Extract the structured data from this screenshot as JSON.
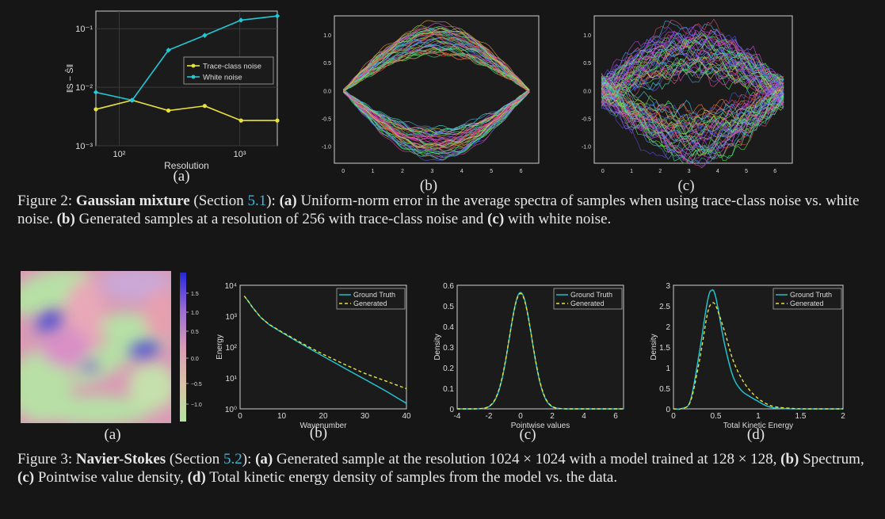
{
  "figure2": {
    "panel_labels": [
      "(a)",
      "(b)",
      "(c)"
    ],
    "caption": {
      "prefix": "Figure 2: ",
      "title": "Gaussian mixture",
      "section_open": " (Section ",
      "section_ref": "5.1",
      "section_close": "): ",
      "a_label": "(a)",
      "a_text": " Uniform-norm error in the average spectra of samples when using trace-class noise vs. white noise. ",
      "b_label": "(b)",
      "b_text": " Generated samples at a resolution of 256 with trace-class noise and ",
      "c_label": "(c)",
      "c_text": " with white noise."
    }
  },
  "figure3": {
    "panel_labels": [
      "(a)",
      "(b)",
      "(c)",
      "(d)"
    ],
    "caption": {
      "prefix": "Figure 3: ",
      "title": "Navier-Stokes",
      "section_open": " (Section ",
      "section_ref": "5.2",
      "section_close": "): ",
      "a_label": "(a)",
      "a_text": " Generated sample at the resolution 1024 × 1024 with a model trained at 128 × 128, ",
      "b_label": "(b)",
      "b_text": " Spectrum, ",
      "c_label": "(c)",
      "c_text": " Pointwise value density, ",
      "d_label": "(d)",
      "d_text": " Total kinetic energy density of samples from the model vs. the data."
    }
  },
  "colors": {
    "cyan": "#22c8d6",
    "yellow": "#e8e23a",
    "link": "#3fb6d8"
  },
  "chart_data": [
    {
      "id": "fig2a",
      "type": "line",
      "xlabel": "Resolution",
      "ylabel": "‖S − Ŝ‖",
      "xscale": "log",
      "yscale": "log",
      "xlim": [
        64,
        2048
      ],
      "ylim": [
        0.001,
        0.2
      ],
      "xticks": [
        "10²",
        "10³"
      ],
      "yticks": [
        "10⁻³",
        "10⁻²",
        "10⁻¹"
      ],
      "x": [
        64,
        128,
        256,
        512,
        1024,
        2048
      ],
      "series": [
        {
          "name": "Trace-class noise",
          "values": [
            0.0042,
            0.006,
            0.004,
            0.0048,
            0.0027,
            0.0027
          ]
        },
        {
          "name": "White noise",
          "values": [
            0.0082,
            0.006,
            0.043,
            0.077,
            0.14,
            0.165
          ]
        }
      ],
      "legend": "center-right"
    },
    {
      "id": "fig2b",
      "type": "line",
      "xlim": [
        -0.3,
        6.6
      ],
      "ylim": [
        -1.3,
        1.35
      ],
      "xticks": [
        "0",
        "1",
        "2",
        "3",
        "4",
        "5",
        "6"
      ],
      "yticks": [
        "-1.0",
        "-0.5",
        "0.0",
        "0.5",
        "1.0"
      ],
      "description_points": "many overlapping sample curves forming an eye shape between 0 and 2π"
    },
    {
      "id": "fig2c",
      "type": "line",
      "xlim": [
        -0.3,
        6.6
      ],
      "ylim": [
        -1.3,
        1.35
      ],
      "xticks": [
        "0",
        "1",
        "2",
        "3",
        "4",
        "5",
        "6"
      ],
      "yticks": [
        "-1.0",
        "-0.5",
        "0.0",
        "0.5",
        "1.0"
      ]
    },
    {
      "id": "fig3a",
      "type": "heatmap",
      "colorbar_ticks": [
        "1.5",
        "1.0",
        "0.5",
        "0.0",
        "−0.5",
        "−1.0"
      ]
    },
    {
      "id": "fig3b",
      "type": "line",
      "xlabel": "Wavenumber",
      "ylabel": "Energy",
      "yscale": "log",
      "xlim": [
        0,
        40
      ],
      "ylim": [
        1,
        10000
      ],
      "xticks": [
        "0",
        "10",
        "20",
        "30",
        "40"
      ],
      "yticks": [
        "10⁰",
        "10¹",
        "10²",
        "10³",
        "10⁴"
      ],
      "x": [
        1,
        2,
        3,
        5,
        7,
        10,
        15,
        20,
        25,
        30,
        35,
        40
      ],
      "series": [
        {
          "name": "Ground Truth",
          "values": [
            4500,
            3000,
            1900,
            900,
            530,
            300,
            120,
            50,
            21,
            9,
            3.8,
            1.5
          ]
        },
        {
          "name": "Generated",
          "values": [
            4500,
            3000,
            1900,
            900,
            540,
            310,
            130,
            58,
            28,
            14,
            8,
            4.5
          ]
        }
      ],
      "legend": "top-right"
    },
    {
      "id": "fig3c",
      "type": "line",
      "xlabel": "Pointwise values",
      "ylabel": "Density",
      "xlim": [
        -4,
        6.5
      ],
      "ylim": [
        0,
        0.6
      ],
      "xticks": [
        "-4",
        "-2",
        "0",
        "2",
        "4",
        "6"
      ],
      "yticks": [
        "0",
        "0.1",
        "0.2",
        "0.3",
        "0.4",
        "0.5",
        "0.6"
      ],
      "series": [
        {
          "name": "Ground Truth",
          "mean": 0,
          "sd": 0.71,
          "peak": 0.565
        },
        {
          "name": "Generated",
          "mean": 0,
          "sd": 0.72,
          "peak": 0.56
        }
      ],
      "legend": "top-right"
    },
    {
      "id": "fig3d",
      "type": "line",
      "xlabel": "Total Kinetic Energy",
      "ylabel": "Density",
      "xlim": [
        0,
        2
      ],
      "ylim": [
        0,
        3
      ],
      "xticks": [
        "0",
        "0.5",
        "1",
        "1.5",
        "2"
      ],
      "yticks": [
        "0",
        "0.5",
        "1",
        "1.5",
        "2",
        "2.5",
        "3"
      ],
      "x": [
        0,
        0.1,
        0.2,
        0.3,
        0.4,
        0.45,
        0.5,
        0.6,
        0.7,
        0.8,
        0.9,
        1.0,
        1.1,
        1.2,
        1.4,
        1.6,
        2.0
      ],
      "series": [
        {
          "name": "Ground Truth",
          "values": [
            0,
            0.01,
            0.2,
            1.3,
            2.6,
            2.88,
            2.7,
            1.6,
            0.8,
            0.45,
            0.3,
            0.18,
            0.07,
            0.02,
            0,
            0,
            0
          ]
        },
        {
          "name": "Generated",
          "values": [
            0,
            0.01,
            0.18,
            1.1,
            2.3,
            2.55,
            2.5,
            1.9,
            1.2,
            0.75,
            0.45,
            0.25,
            0.12,
            0.05,
            0.01,
            0,
            0
          ]
        }
      ],
      "legend": "top-right"
    }
  ]
}
